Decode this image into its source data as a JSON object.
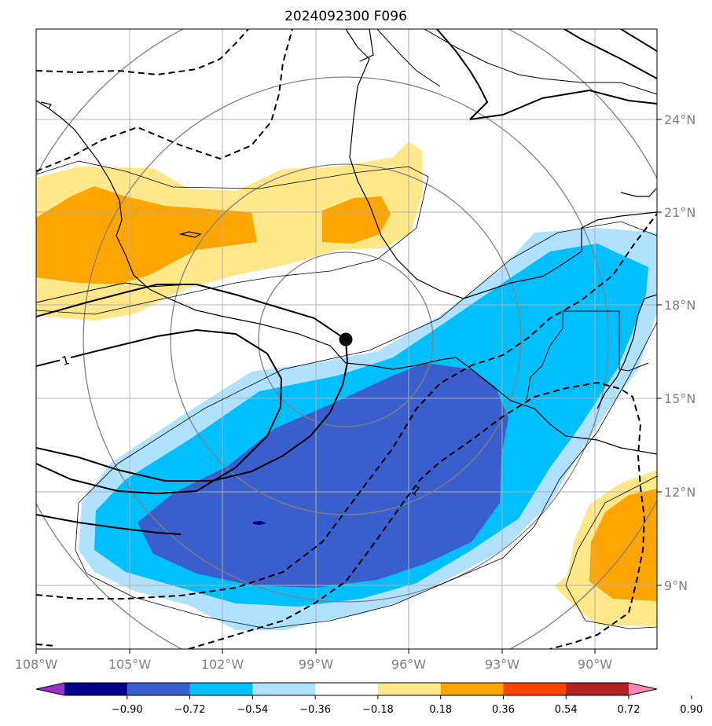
{
  "title": "2024092300 F096",
  "map": {
    "lon_range": [
      -108,
      -88.5
    ],
    "lat_range": [
      7,
      27
    ],
    "grid": true,
    "lon_ticks": [
      "108°W",
      "105°W",
      "102°W",
      "99°W",
      "96°W",
      "93°W",
      "90°W"
    ],
    "lat_ticks": [
      "24°N",
      "21°N",
      "18°N",
      "15°N",
      "12°N",
      "9°N"
    ],
    "center_marker": "storm-center-dot",
    "contour_label_a": "1",
    "contour_label_b": "1"
  },
  "colorbar": {
    "ticks": [
      "−0.90",
      "−0.72",
      "−0.54",
      "−0.36",
      "−0.18",
      "0.18",
      "0.36",
      "0.54",
      "0.72",
      "0.90"
    ],
    "colors": [
      "#9932cc",
      "#00008b",
      "#3a5fcd",
      "#00bfff",
      "#b0e2ff",
      "#ffffff",
      "#ffe78a",
      "#ffa500",
      "#ff4500",
      "#b22222",
      "#ff86b8"
    ]
  },
  "fill_colors": {
    "light_yellow": "#ffe78a",
    "orange": "#ffa500",
    "light_blue": "#b0e2ff",
    "mid_blue": "#00bfff",
    "dark_blue": "#3a5fcd"
  }
}
